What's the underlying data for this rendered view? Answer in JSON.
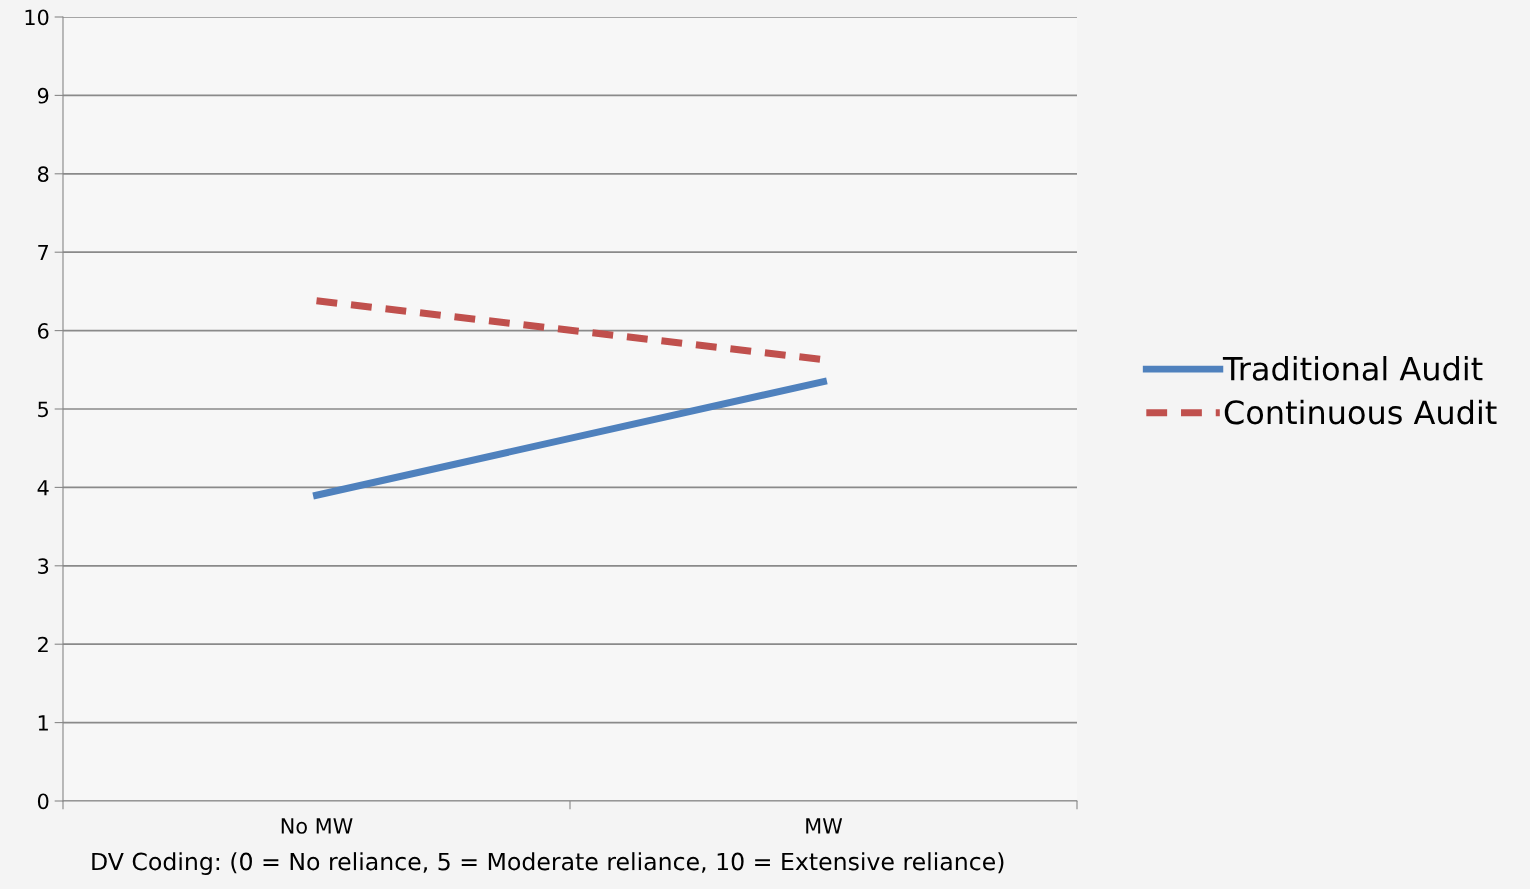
{
  "chart_data": {
    "type": "line",
    "categories": [
      "No MW",
      "MW"
    ],
    "series": [
      {
        "name": "Traditional Audit",
        "color": "#4f81bd",
        "values": [
          3.9,
          5.35
        ],
        "line_style": "solid"
      },
      {
        "name": "Continuous Audit",
        "color": "#c0504d",
        "values": [
          6.38,
          5.63
        ],
        "line_style": "dashed"
      }
    ],
    "ylim": [
      0,
      10
    ],
    "yticks": [
      0,
      1,
      2,
      3,
      4,
      5,
      6,
      7,
      8,
      9,
      10
    ],
    "grid": "y",
    "legend": "right",
    "marker": "none",
    "annotations": [
      "DV Coding: (0 = No reliance, 5 = Moderate reliance, 10 = Extensive reliance)"
    ]
  }
}
